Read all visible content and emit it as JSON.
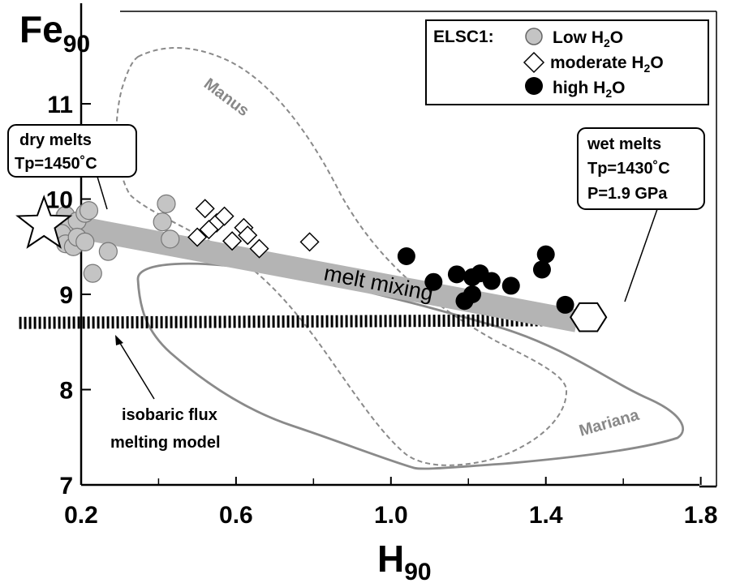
{
  "chart_data": {
    "type": "scatter",
    "xlabel": "H",
    "xlabel_sub": "90",
    "ylabel": "Fe",
    "ylabel_sub": "90",
    "xlim": [
      0,
      1.8
    ],
    "ylim": [
      7,
      11.9
    ],
    "x_ticks": [
      {
        "value": 0.2,
        "label": "0.2"
      },
      {
        "value": 0.6,
        "label": "0.6"
      },
      {
        "value": 1.0,
        "label": "1.0"
      },
      {
        "value": 1.4,
        "label": "1.4"
      },
      {
        "value": 1.8,
        "label": "1.8"
      }
    ],
    "y_ticks": [
      {
        "value": 7,
        "label": "7"
      },
      {
        "value": 8,
        "label": "8"
      },
      {
        "value": 9,
        "label": "9"
      },
      {
        "value": 10,
        "label": "10"
      },
      {
        "value": 11,
        "label": "11"
      }
    ],
    "legend": {
      "title": "ELSC1:",
      "placement": "top-right",
      "entries": [
        {
          "marker": "circle-gray",
          "label": "Low H",
          "sub": "2",
          "suffix": "O"
        },
        {
          "marker": "diamond-open",
          "label": "moderate H",
          "sub": "2",
          "suffix": "O"
        },
        {
          "marker": "circle-black",
          "label": "high H",
          "sub": "2",
          "suffix": "O"
        }
      ]
    },
    "colors": {
      "low": "#c4c4c4",
      "moderate": "#ffffff",
      "high": "#000000",
      "field": "#888888",
      "mix": "#b4b4b4"
    },
    "series": [
      {
        "name": "Low H2O",
        "marker": "circle-gray",
        "points": [
          [
            0.16,
            9.83
          ],
          [
            0.17,
            9.7
          ],
          [
            0.19,
            9.77
          ],
          [
            0.21,
            9.85
          ],
          [
            0.22,
            9.88
          ],
          [
            0.15,
            9.64
          ],
          [
            0.16,
            9.53
          ],
          [
            0.18,
            9.5
          ],
          [
            0.19,
            9.6
          ],
          [
            0.21,
            9.55
          ],
          [
            0.27,
            9.45
          ],
          [
            0.23,
            9.22
          ],
          [
            0.42,
            9.95
          ],
          [
            0.41,
            9.76
          ],
          [
            0.43,
            9.58
          ]
        ]
      },
      {
        "name": "moderate H2O",
        "marker": "diamond-open",
        "points": [
          [
            0.52,
            9.9
          ],
          [
            0.55,
            9.75
          ],
          [
            0.57,
            9.82
          ],
          [
            0.53,
            9.68
          ],
          [
            0.5,
            9.6
          ],
          [
            0.62,
            9.7
          ],
          [
            0.59,
            9.56
          ],
          [
            0.63,
            9.62
          ],
          [
            0.66,
            9.48
          ],
          [
            0.79,
            9.55
          ]
        ]
      },
      {
        "name": "high H2O",
        "marker": "circle-black",
        "points": [
          [
            1.04,
            9.4
          ],
          [
            1.11,
            9.13
          ],
          [
            1.17,
            9.21
          ],
          [
            1.21,
            9.18
          ],
          [
            1.23,
            9.22
          ],
          [
            1.26,
            9.14
          ],
          [
            1.31,
            9.09
          ],
          [
            1.21,
            9.0
          ],
          [
            1.19,
            8.93
          ],
          [
            1.4,
            9.42
          ],
          [
            1.39,
            9.26
          ],
          [
            1.45,
            8.89
          ]
        ]
      }
    ],
    "annotations": {
      "dry_melts": {
        "line1": "dry melts",
        "line2": "Tp=1450˚C",
        "marker": "star",
        "x": 0.1,
        "y": 9.8
      },
      "wet_melts": {
        "line1": "wet melts",
        "line2": "Tp=1430˚C",
        "line3": "P=1.9 GPa",
        "marker": "hexagon",
        "x": 1.51,
        "y": 8.76
      },
      "melt_mixing": {
        "label": "melt mixing",
        "from": [
          0.13,
          9.75
        ],
        "to": [
          1.48,
          8.72
        ]
      },
      "isobaric_model": {
        "line1": "isobaric flux",
        "line2": "melting model",
        "from": [
          0.04,
          8.7
        ],
        "to": [
          1.47,
          8.73
        ]
      },
      "fields": [
        {
          "name": "Manus",
          "style": "dashed"
        },
        {
          "name": "Mariana",
          "style": "solid"
        }
      ]
    }
  }
}
